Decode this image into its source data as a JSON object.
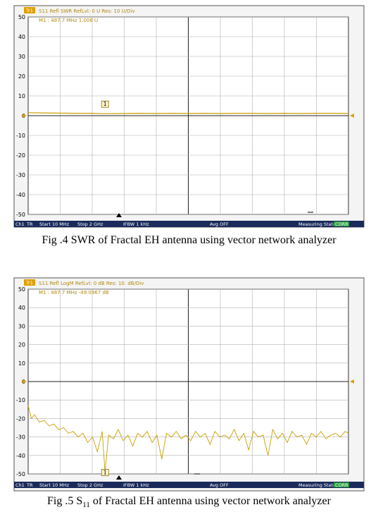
{
  "chart_data": [
    {
      "type": "line",
      "trace_label": "Tr1",
      "header": "S11 Refl SWR RefLvl: 0 U Res: 10 U/Div",
      "marker_readout": "M1 : 487.7 MHz 1.008 U",
      "marker_label": "1",
      "ylim": [
        -50,
        50
      ],
      "yticks": [
        50,
        40,
        30,
        20,
        10,
        0,
        -10,
        -20,
        -30,
        -40,
        -50
      ],
      "xlim": [
        10,
        2000
      ],
      "x_unit": "MHz",
      "grid": true,
      "trace_color": "#c8a000",
      "series": [
        {
          "x": [
            10,
            100,
            200,
            300,
            400,
            487.7,
            600,
            700,
            800,
            900,
            1000,
            1100,
            1200,
            1300,
            1400,
            1500,
            1600,
            1700,
            1800,
            1900,
            2000
          ],
          "values": [
            1.5,
            1.4,
            1.3,
            1.2,
            1.2,
            1.008,
            1.1,
            1.2,
            1.1,
            1.2,
            1.1,
            1.2,
            1.1,
            1.2,
            1.2,
            1.1,
            1.2,
            1.1,
            1.2,
            1.2,
            1.1
          ]
        }
      ],
      "status_bar": {
        "ch": "Ch1",
        "tr": "TR",
        "start": "Start 10 MHz",
        "stop": "Stop 2 GHz",
        "ifbw": "IFBW 1 kHz",
        "avg": "Avg OFF",
        "state": "Measuring State",
        "corr": "CORR"
      },
      "caption": "Fig .4 SWR of Fractal EH antenna using vector network analyzer"
    },
    {
      "type": "line",
      "trace_label": "Tr1",
      "header": "S11 Refl LogM RefLvl: 0 dB Res: 10. dB/Div",
      "marker_readout": "M1 : 487.7 MHz -49.0967 dB",
      "marker_label": "1",
      "ylim": [
        -50,
        50
      ],
      "yticks": [
        50,
        40,
        30,
        20,
        10,
        0,
        -10,
        -20,
        -30,
        -40,
        -50
      ],
      "xlim": [
        10,
        2000
      ],
      "x_unit": "MHz",
      "grid": true,
      "trace_color": "#c8a000",
      "series": [
        {
          "x": [
            10,
            30,
            50,
            80,
            110,
            140,
            170,
            200,
            230,
            260,
            290,
            320,
            350,
            380,
            410,
            440,
            470,
            487.7,
            510,
            540,
            570,
            600,
            630,
            660,
            690,
            720,
            750,
            780,
            810,
            840,
            870,
            900,
            930,
            960,
            990,
            1020,
            1050,
            1080,
            1110,
            1140,
            1170,
            1200,
            1230,
            1260,
            1290,
            1320,
            1350,
            1380,
            1410,
            1440,
            1470,
            1500,
            1530,
            1560,
            1590,
            1620,
            1650,
            1680,
            1710,
            1740,
            1770,
            1800,
            1830,
            1860,
            1890,
            1920,
            1950,
            1980,
            2000
          ],
          "values": [
            -13,
            -20,
            -18,
            -22,
            -21,
            -24,
            -23,
            -26,
            -25,
            -28,
            -27,
            -30,
            -28,
            -33,
            -30,
            -38,
            -27,
            -49,
            -29,
            -31,
            -26,
            -32,
            -29,
            -35,
            -28,
            -30,
            -27,
            -33,
            -29,
            -42,
            -28,
            -30,
            -27,
            -31,
            -29,
            -32,
            -27,
            -30,
            -28,
            -34,
            -27,
            -30,
            -29,
            -31,
            -26,
            -32,
            -28,
            -37,
            -27,
            -30,
            -29,
            -40,
            -26,
            -31,
            -28,
            -33,
            -27,
            -30,
            -29,
            -34,
            -28,
            -30,
            -27,
            -31,
            -29,
            -28,
            -30,
            -27,
            -28
          ]
        }
      ],
      "status_bar": {
        "ch": "Ch1",
        "tr": "TR",
        "start": "Start 10 MHz",
        "stop": "Stop 2 GHz",
        "ifbw": "IFBW 1 kHz",
        "avg": "Avg OFF",
        "state": "Measuring State",
        "corr": "CORR"
      },
      "caption_main": "Fig .5 S",
      "caption_sub": "11",
      "caption_rest": " of Fractal EH antenna using vector network analyzer"
    }
  ]
}
